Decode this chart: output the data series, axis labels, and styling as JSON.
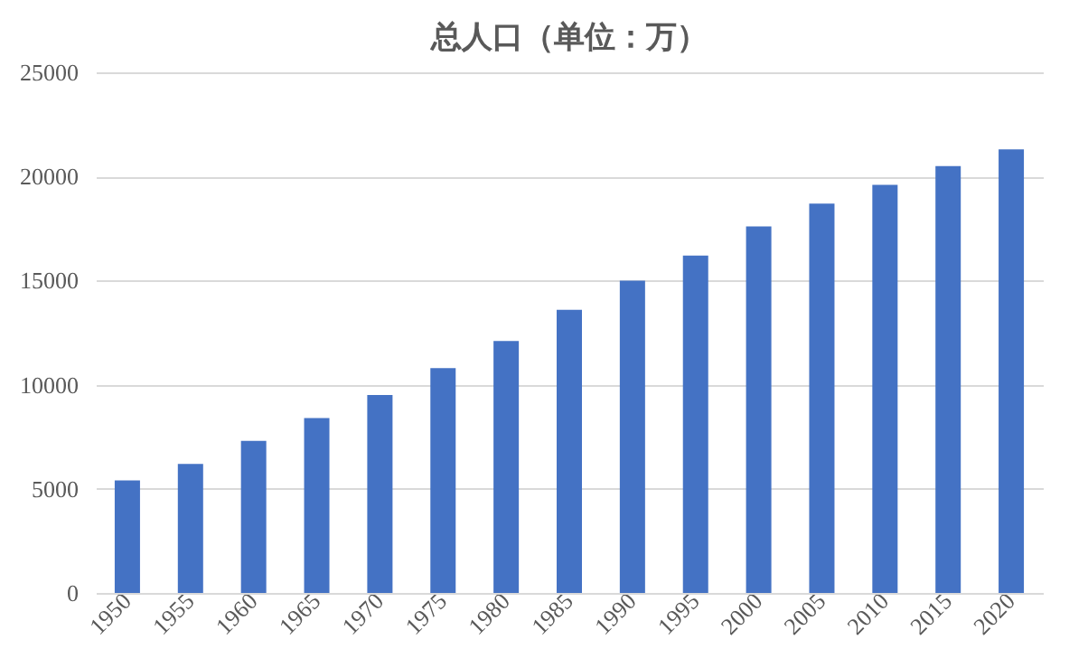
{
  "chart_data": {
    "type": "bar",
    "title": "总人口（单位：万）",
    "categories": [
      "1950",
      "1955",
      "1960",
      "1965",
      "1970",
      "1975",
      "1980",
      "1985",
      "1990",
      "1995",
      "2000",
      "2005",
      "2010",
      "2015",
      "2020"
    ],
    "series": [
      {
        "color": "#4472c4",
        "values": [
          5400,
          6200,
          7300,
          8400,
          9500,
          10800,
          12100,
          13600,
          15000,
          16200,
          17600,
          18700,
          19600,
          20500,
          21300
        ]
      }
    ],
    "ylim": [
      0,
      25000
    ],
    "yticks": [
      0,
      5000,
      10000,
      15000,
      20000,
      25000
    ],
    "grid": "y",
    "legend": false
  }
}
